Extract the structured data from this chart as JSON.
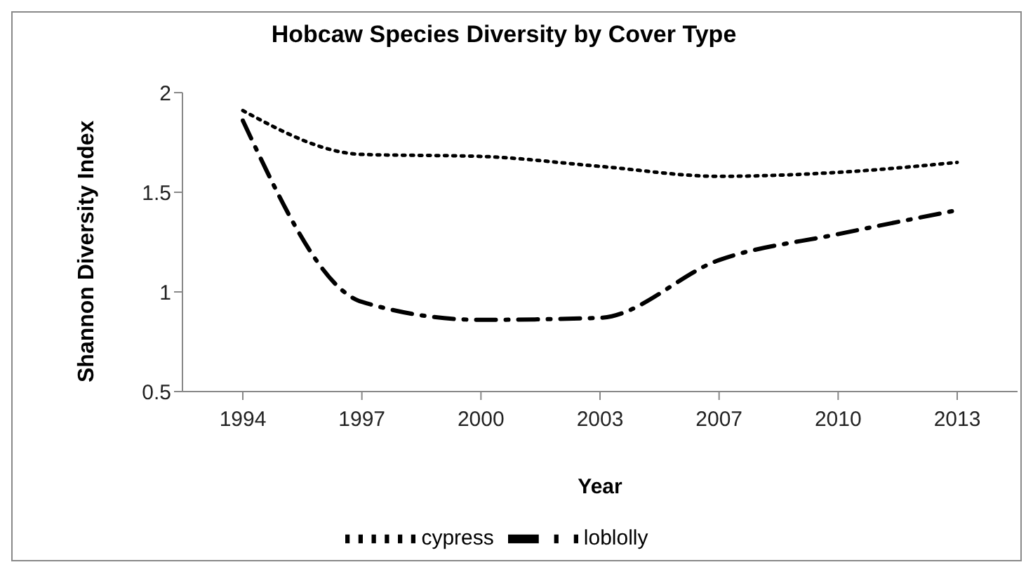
{
  "chart_data": {
    "type": "line",
    "title": "Hobcaw Species Diversity by Cover Type",
    "xlabel": "Year",
    "ylabel": "Shannon Diversity Index",
    "categories": [
      "1994",
      "1997",
      "2000",
      "2003",
      "2007",
      "2010",
      "2013"
    ],
    "series": [
      {
        "name": "cypress",
        "color": "#000000",
        "line_style": "dotted",
        "values": [
          1.91,
          1.69,
          1.68,
          1.63,
          1.58,
          1.6,
          1.65
        ]
      },
      {
        "name": "loblolly",
        "color": "#000000",
        "line_style": "dashed",
        "values": [
          1.86,
          0.95,
          0.86,
          0.87,
          1.16,
          1.29,
          1.41
        ]
      }
    ],
    "ylim": [
      0.5,
      2
    ],
    "yticks": [
      0.5,
      1,
      1.5,
      2
    ],
    "grid": false,
    "legend": "bottom",
    "marker": "none"
  }
}
